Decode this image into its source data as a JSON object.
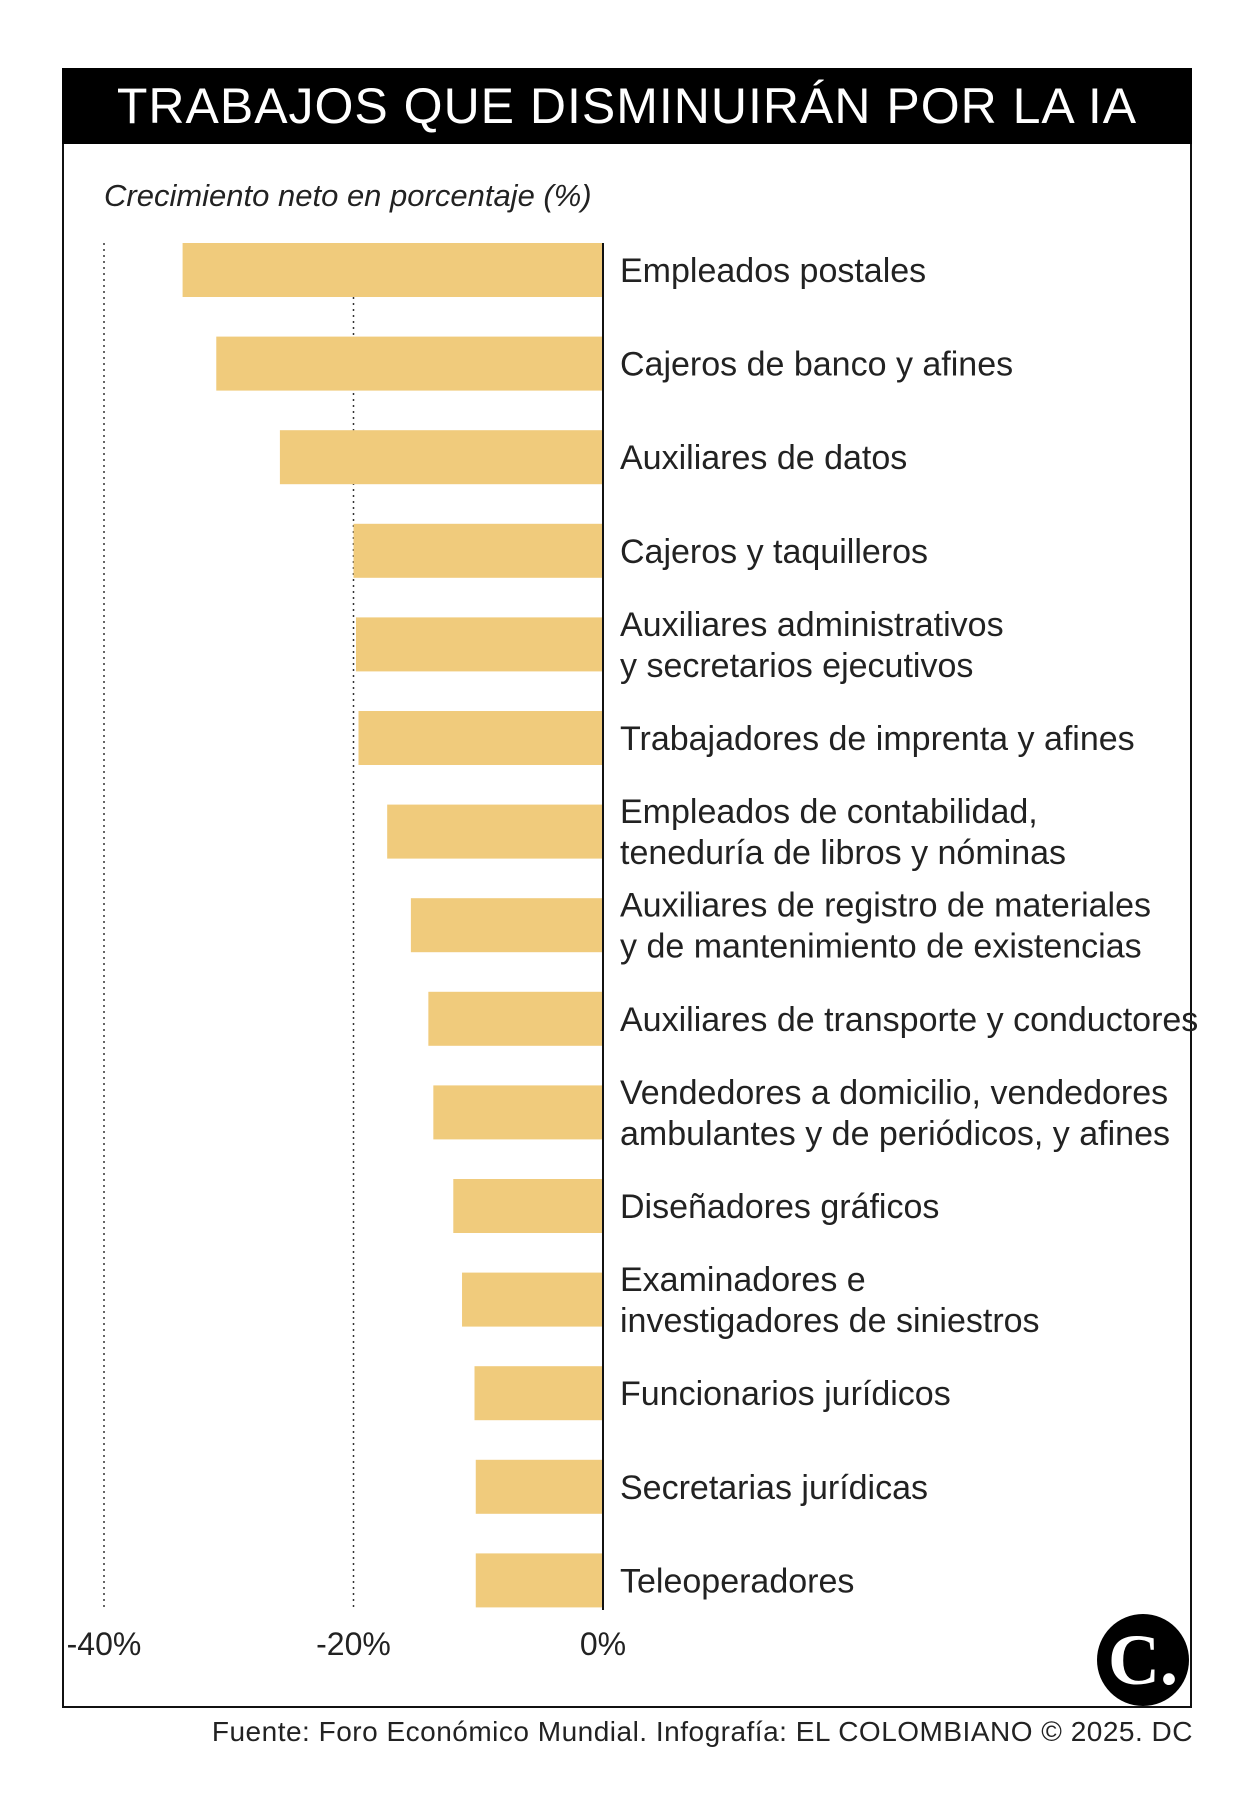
{
  "header": {
    "title": "TRABAJOS QUE DISMINUIRÁN POR LA IA"
  },
  "subtitle": "Crecimiento neto en porcentaje (%)",
  "source": "Fuente: Foro Económico Mundial. Infografía: EL COLOMBIANO © 2025. DC",
  "logo": {
    "glyph": "C."
  },
  "colors": {
    "bar": "#F0CB7C",
    "axis": "#111111",
    "text": "#222222",
    "header_bg": "#000000"
  },
  "chart_data": {
    "type": "bar",
    "orientation": "horizontal",
    "title": "TRABAJOS QUE DISMINUIRÁN POR LA IA",
    "xlabel": "Crecimiento neto en porcentaje (%)",
    "xlim": [
      -40,
      0
    ],
    "xticks": [
      "-40%",
      "-20%",
      "0%"
    ],
    "xtick_values": [
      -40,
      -20,
      0
    ],
    "grid": "dotted vertical at -40 and -20",
    "categories": [
      [
        "Empleados postales"
      ],
      [
        "Cajeros de banco y afines"
      ],
      [
        "Auxiliares de datos"
      ],
      [
        "Cajeros y taquilleros"
      ],
      [
        "Auxiliares administrativos",
        "y secretarios ejecutivos"
      ],
      [
        "Trabajadores de imprenta y afines"
      ],
      [
        "Empleados de contabilidad,",
        "teneduría de libros y nóminas"
      ],
      [
        "Auxiliares de registro de materiales",
        "y de mantenimiento de existencias"
      ],
      [
        "Auxiliares de transporte y conductores"
      ],
      [
        "Vendedores a domicilio, vendedores",
        "ambulantes y de periódicos, y afines"
      ],
      [
        "Diseñadores gráficos"
      ],
      [
        "Examinadores e",
        "investigadores de siniestros"
      ],
      [
        "Funcionarios jurídicos"
      ],
      [
        "Secretarias jurídicas"
      ],
      [
        "Teleoperadores"
      ]
    ],
    "values": [
      -33.7,
      -31,
      -25.9,
      -20,
      -19.8,
      -19.6,
      -17.3,
      -15.4,
      -14,
      -13.6,
      -12,
      -11.3,
      -10.3,
      -10.2,
      -10.2
    ]
  }
}
